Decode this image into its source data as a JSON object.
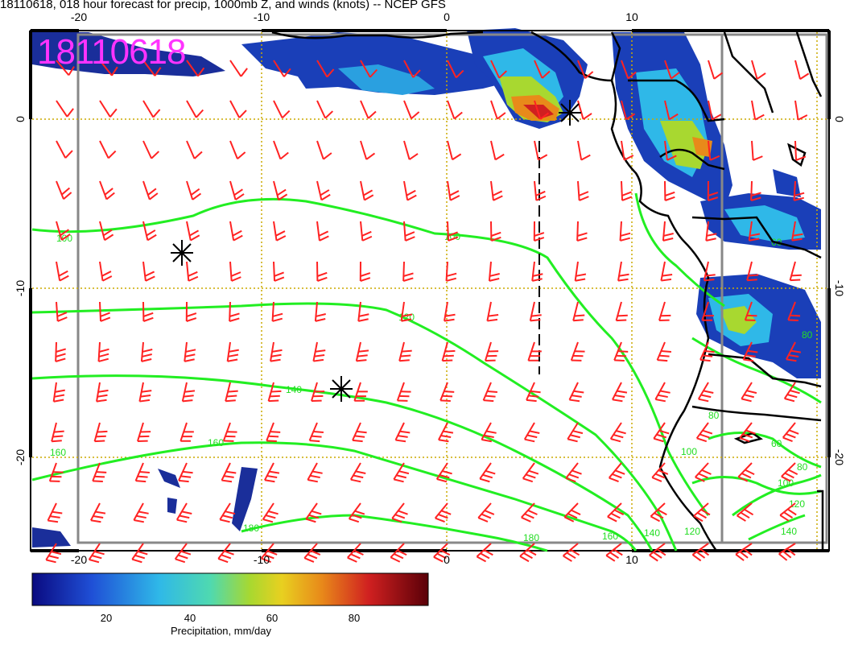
{
  "title": "18110618, 018 hour forecast for precip, 1000mb Z, and winds (knots) -- NCEP GFS",
  "date_stamp": "18110618",
  "axes": {
    "top_ticks": [
      "-20",
      "-10",
      "0",
      "10"
    ],
    "bottom_ticks": [
      "-20",
      "-10",
      "0",
      "10"
    ],
    "left_ticks": [
      "0",
      "-10",
      "-20"
    ],
    "right_ticks": [
      "0",
      "-10",
      "-20"
    ]
  },
  "contours": {
    "height_labels": [
      "100",
      "100",
      "120",
      "140",
      "160",
      "160",
      "180",
      "180",
      "160",
      "140",
      "120",
      "100",
      "80",
      "60",
      "80",
      "100",
      "120",
      "140",
      "60",
      "80"
    ]
  },
  "colorbar": {
    "label": "Precipitation, mm/day",
    "ticks": [
      "20",
      "40",
      "60",
      "80"
    ],
    "stops": [
      "#0a0a80",
      "#1f4fd6",
      "#2fb8e8",
      "#4fd9b0",
      "#a8d830",
      "#e8d020",
      "#e88a1a",
      "#d02020",
      "#5a0008"
    ]
  },
  "colors": {
    "stamp": "#ff33ff",
    "wind_barbs": "#ff2222",
    "height_contours": "#22ee22",
    "coastline": "#000000",
    "grid": "#ccaa00",
    "frame": "#888888"
  }
}
